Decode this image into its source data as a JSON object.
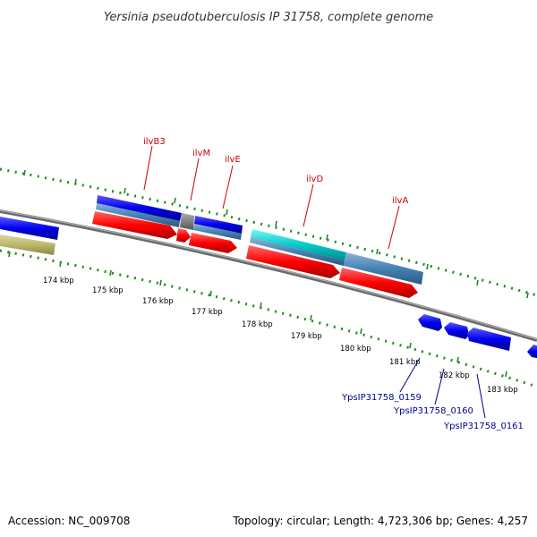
{
  "title": "Yersinia pseudotuberculosis IP 31758, complete genome",
  "footer": {
    "accession": "Accession: NC_009708",
    "stats": "Topology: circular; Length: 4,723,306 bp; Genes: 4,257"
  },
  "scale": {
    "unit": "kbp",
    "ticks": [
      "174 kbp",
      "175 kbp",
      "176 kbp",
      "177 kbp",
      "178 kbp",
      "179 kbp",
      "180 kbp",
      "181 kbp",
      "182 kbp",
      "183 kbp"
    ]
  },
  "gene_labels": [
    "ilvB3",
    "ilvM",
    "ilvE",
    "ilvD",
    "ilvA"
  ],
  "locus_labels": [
    "YpsIP31758_0159",
    "YpsIP31758_0160",
    "YpsIP31758_0161"
  ],
  "colors": {
    "backbone": "#888888",
    "cds_red": "#ff0000",
    "gene_blue": "#0000ee",
    "gene_steel": "#4682b4",
    "gene_cyan": "#00cccc",
    "gene_gray": "#777777",
    "gene_olive": "#bdb76b",
    "tick_green": "#228b22",
    "gene_label": "#cc0000",
    "locus_label": "#00008b"
  }
}
